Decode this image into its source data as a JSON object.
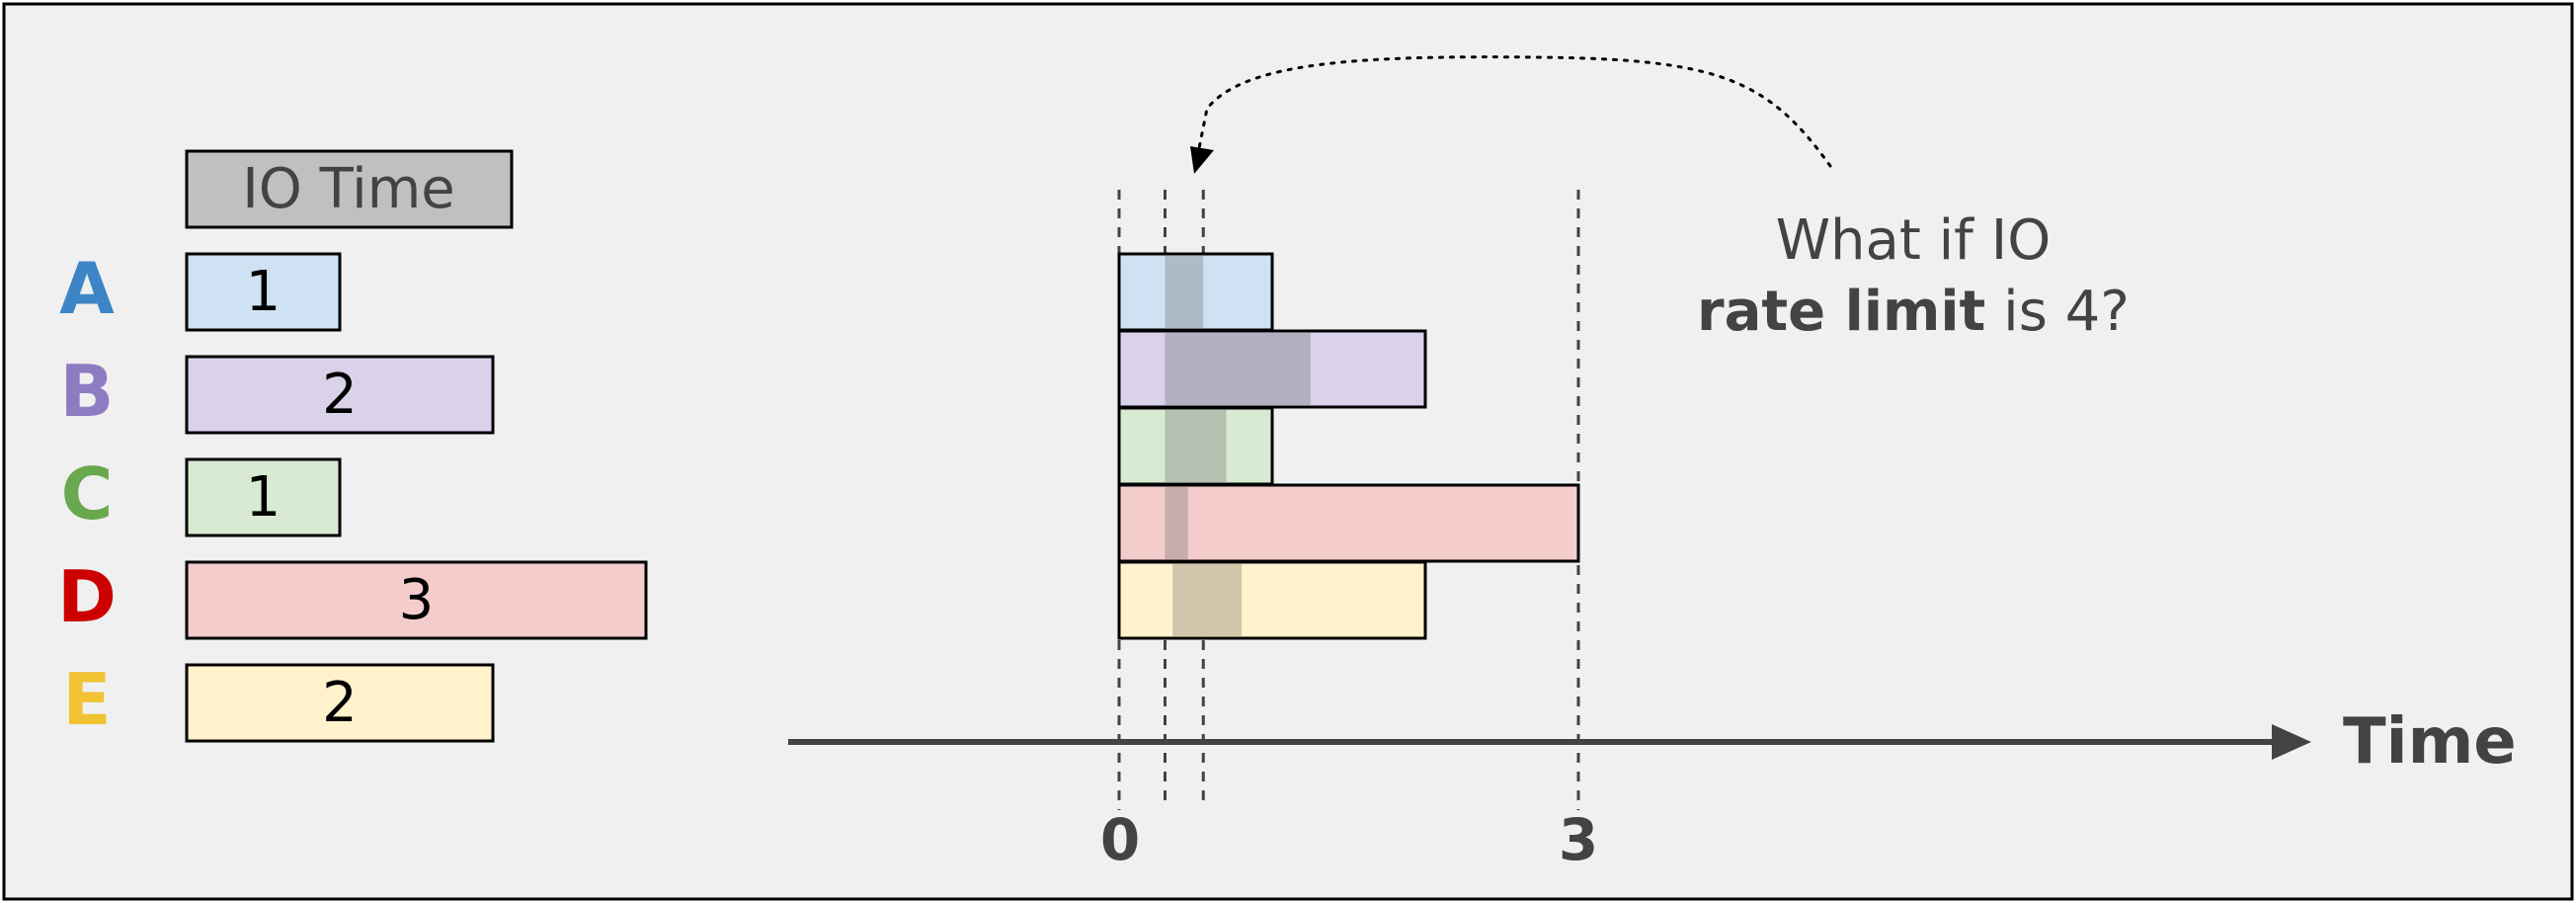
{
  "legend": {
    "header": "IO Time",
    "rows": [
      {
        "letter": "A",
        "value": "1",
        "color": "#3d85c6",
        "fill": "#cfe2f3"
      },
      {
        "letter": "B",
        "value": "2",
        "color": "#8e7cc3",
        "fill": "#d9d2e9"
      },
      {
        "letter": "C",
        "value": "1",
        "color": "#6aa84f",
        "fill": "#d9ead3"
      },
      {
        "letter": "D",
        "value": "3",
        "color": "#cc0000",
        "fill": "#f4cccc"
      },
      {
        "letter": "E",
        "value": "2",
        "color": "#f1c232",
        "fill": "#fff2cc"
      }
    ]
  },
  "timeline": {
    "axis_label": "Time",
    "tick_labels": [
      "0",
      "3"
    ],
    "io_times": [
      1,
      2,
      1,
      3,
      2
    ],
    "rate_limited_ends": [
      0.55,
      1.25,
      0.7,
      0.3,
      0.8
    ],
    "shade_start_reference": 0.3
  },
  "annotation": {
    "line1": "What if IO",
    "bold": "rate limit",
    "rest": " is 4?"
  },
  "colors": {
    "background": "#f0f0f0",
    "border": "#000000",
    "text": "#434343",
    "header_fill": "#c0c0c0",
    "overlap_shade": "#555555"
  }
}
